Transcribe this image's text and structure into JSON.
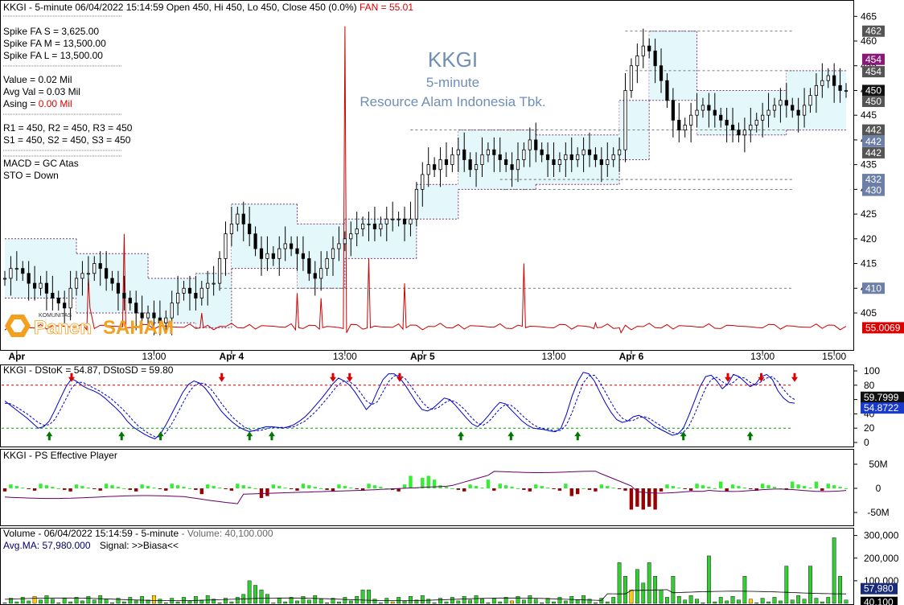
{
  "colors": {
    "band_fill": "#e4f7fa",
    "band_edge": "#7a3a7a",
    "candle": "#000000",
    "fan": "#cc0000",
    "stoch": "#0000cc",
    "stoch_sig": "#0000cc",
    "overbought": "#cc0000",
    "oversold": "#009900",
    "ps_pos": "#33ee33",
    "ps_neg": "#990000",
    "ps_line": "#660066",
    "vol_green": "#33cc33",
    "vol_red": "#cc0000",
    "vol_gray": "#bbbbbb",
    "vol_yellow": "#ffcc00"
  },
  "main": {
    "header": "KKGI - 5-minute 06/04/2022 15:14:59 Open 450, Hi 450, Lo 450, Close 450 (0.0%)",
    "header_fan": "FAN = 55.01",
    "watermark_ticker": "KKGI",
    "watermark_interval": "5-minute",
    "watermark_company": "Resource Alam Indonesia Tbk.",
    "info_lines": [
      "Spike FA S =  3,625.00",
      "Spike FA M =  13,500.00",
      "Spike FA L =  13,500.00",
      "Value = 0.02 Mil",
      "Avg Val = 0.03 Mil",
      "Asing = 0.00 Mil",
      "R1 = 450, R2 = 450, R3 = 450",
      "S1 = 450, S2 = 450, S3 = 450",
      "MACD =  GC Atas",
      "STO  =  Down"
    ],
    "info_asing_label": "Asing = ",
    "info_asing_value": "0.00 Mil",
    "logo_small": "KOMUNITAS",
    "logo_a": "Panen",
    "logo_b": "SAHAM"
  },
  "chart_data": [
    {
      "type": "candlestick",
      "title": "KKGI - 5-minute 06/04/2022 15:14:59 Open 450, Hi 450, Lo 450, Close 450 (0.0%)",
      "ylim": [
        398,
        467
      ],
      "y_ticks": [
        405,
        410,
        415,
        420,
        425,
        430,
        435,
        440,
        445,
        450,
        455,
        460,
        465
      ],
      "x_labels": [
        {
          "label": "Apr",
          "bar": 2
        },
        {
          "label": "13:00",
          "bar": 25
        },
        {
          "label": "Apr 4",
          "bar": 38
        },
        {
          "label": "13:00",
          "bar": 57
        },
        {
          "label": "Apr 5",
          "bar": 70
        },
        {
          "label": "13:00",
          "bar": 92
        },
        {
          "label": "Apr 6",
          "bar": 105
        },
        {
          "label": "13:00",
          "bar": 127
        },
        {
          "label": "15:00",
          "bar": 139
        }
      ],
      "level_lines": [
        410,
        430,
        432,
        442,
        454,
        462
      ],
      "price_tags": [
        {
          "value": "462",
          "y": 462,
          "bg": "#555555"
        },
        {
          "value": "454",
          "y": 456.3,
          "bg": "#8a1a7a"
        },
        {
          "value": "454",
          "y": 453.8,
          "bg": "#555555"
        },
        {
          "value": "450",
          "y": 450,
          "bg": "#111111"
        },
        {
          "value": "450",
          "y": 447.8,
          "bg": "#555555"
        },
        {
          "value": "442",
          "y": 442,
          "bg": "#555555"
        },
        {
          "value": "442",
          "y": 439.7,
          "bg": "#6b7fa8"
        },
        {
          "value": "442",
          "y": 437.4,
          "bg": "#555555"
        },
        {
          "value": "432",
          "y": 432,
          "bg": "#6b7fa8"
        },
        {
          "value": "430",
          "y": 429.8,
          "bg": "#6b7fa8"
        },
        {
          "value": "410",
          "y": 410,
          "bg": "#6b7fa8"
        },
        {
          "value": "55.0069",
          "y": 402,
          "bg": "#dd0000"
        }
      ],
      "band": [
        {
          "from": 0,
          "to": 12,
          "top": 420,
          "bottom": 408
        },
        {
          "from": 12,
          "to": 24,
          "top": 417,
          "bottom": 405
        },
        {
          "from": 24,
          "to": 32,
          "top": 412,
          "bottom": 403
        },
        {
          "from": 32,
          "to": 38,
          "top": 413,
          "bottom": 402
        },
        {
          "from": 38,
          "to": 49,
          "top": 427,
          "bottom": 414
        },
        {
          "from": 49,
          "to": 57,
          "top": 423,
          "bottom": 410
        },
        {
          "from": 57,
          "to": 69,
          "top": 424,
          "bottom": 416
        },
        {
          "from": 69,
          "to": 76,
          "top": 431,
          "bottom": 424
        },
        {
          "from": 76,
          "to": 89,
          "top": 442,
          "bottom": 430
        },
        {
          "from": 89,
          "to": 103,
          "top": 441,
          "bottom": 431
        },
        {
          "from": 103,
          "to": 108,
          "top": 448,
          "bottom": 436
        },
        {
          "from": 108,
          "to": 116,
          "top": 462,
          "bottom": 448
        },
        {
          "from": 116,
          "to": 131,
          "top": 450,
          "bottom": 441
        },
        {
          "from": 131,
          "to": 141,
          "top": 454,
          "bottom": 442
        }
      ],
      "close": [
        412,
        414,
        414,
        413,
        411,
        410,
        411,
        409,
        408,
        407,
        406,
        410,
        412,
        413,
        413,
        415,
        414,
        412,
        411,
        409,
        408,
        407,
        405,
        404,
        405,
        404,
        403,
        404,
        407,
        409,
        410,
        409,
        408,
        410,
        411,
        411,
        416,
        421,
        423,
        425,
        423,
        421,
        418,
        416,
        417,
        416,
        418,
        419,
        418,
        417,
        416,
        413,
        412,
        414,
        416,
        418,
        419,
        420,
        421,
        422,
        423,
        423,
        422,
        423,
        424,
        424,
        424,
        423,
        424,
        430,
        433,
        435,
        434,
        436,
        435,
        437,
        438,
        436,
        434,
        435,
        437,
        438,
        437,
        436,
        435,
        434,
        436,
        438,
        440,
        438,
        437,
        436,
        435,
        436,
        437,
        436,
        437,
        438,
        437,
        436,
        435,
        436,
        437,
        438,
        450,
        455,
        457,
        459,
        458,
        455,
        452,
        448,
        444,
        442,
        443,
        445,
        446,
        447,
        446,
        445,
        444,
        443,
        442,
        441,
        442,
        443,
        444,
        445,
        446,
        447,
        448,
        447,
        446,
        445,
        447,
        449,
        451,
        452,
        453,
        451,
        450,
        450
      ],
      "fan_series": "spike line with peaks near 421, 463, 413, 416 and baseline near 402",
      "fan_last": 55.0069
    },
    {
      "type": "line",
      "title": "KKGI - DStoK = 54.87, DStoSD = 59.80",
      "ylim": [
        0,
        100
      ],
      "y_ticks": [
        0,
        20,
        40,
        60,
        80,
        100
      ],
      "overbought": 80,
      "oversold": 20,
      "series": [
        {
          "name": "DStoK",
          "last": 54.87,
          "values": [
            58,
            52,
            46,
            40,
            34,
            27,
            20,
            22,
            30,
            45,
            62,
            78,
            89,
            85,
            79,
            75,
            72,
            68,
            62,
            55,
            48,
            40,
            30,
            22,
            17,
            12,
            8,
            5,
            12,
            25,
            40,
            55,
            70,
            81,
            86,
            83,
            76,
            66,
            54,
            43,
            35,
            28,
            22,
            18,
            15,
            17,
            20,
            22,
            22,
            21,
            20,
            22,
            25,
            30,
            36,
            44,
            53,
            62,
            72,
            82,
            90,
            86,
            80,
            70,
            58,
            46,
            54,
            72,
            88,
            96,
            96,
            90,
            80,
            68,
            56,
            46,
            44,
            48,
            55,
            62,
            60,
            52,
            43,
            34,
            26,
            22,
            29,
            38,
            48,
            56,
            54,
            46,
            38,
            30,
            24,
            20,
            19,
            18,
            16,
            15,
            20,
            40,
            65,
            85,
            98,
            96,
            86,
            70,
            55,
            42,
            32,
            28,
            30,
            36,
            38,
            34,
            28,
            22,
            18,
            14,
            10,
            12,
            20,
            38,
            58,
            78,
            92,
            94,
            86,
            75,
            82,
            95,
            92,
            85,
            78,
            82,
            92,
            95,
            88,
            72,
            62,
            56,
            55
          ]
        },
        {
          "name": "DStoSD",
          "last": 59.8,
          "values": [
            55,
            54,
            50,
            45,
            40,
            34,
            28,
            24,
            25,
            32,
            46,
            61,
            76,
            84,
            84,
            80,
            76,
            72,
            67,
            62,
            55,
            48,
            40,
            31,
            23,
            17,
            12,
            8,
            8,
            14,
            26,
            40,
            55,
            69,
            79,
            83,
            82,
            75,
            65,
            54,
            44,
            35,
            28,
            22,
            18,
            16,
            17,
            19,
            21,
            21,
            21,
            21,
            22,
            26,
            30,
            37,
            44,
            53,
            62,
            72,
            81,
            86,
            85,
            79,
            69,
            58,
            53,
            57,
            71,
            85,
            93,
            94,
            89,
            79,
            68,
            57,
            49,
            46,
            49,
            55,
            59,
            57,
            51,
            43,
            34,
            27,
            24,
            29,
            38,
            47,
            53,
            52,
            46,
            38,
            31,
            25,
            21,
            19,
            18,
            16,
            17,
            25,
            42,
            63,
            83,
            93,
            94,
            84,
            70,
            56,
            43,
            34,
            30,
            31,
            35,
            36,
            33,
            28,
            23,
            18,
            14,
            12,
            14,
            23,
            39,
            58,
            76,
            88,
            91,
            85,
            80,
            84,
            91,
            90,
            84,
            80,
            85,
            90,
            92,
            85,
            74,
            65,
            60
          ]
        }
      ],
      "last_tags": [
        {
          "value": "59.7999",
          "y": 59.8
        },
        {
          "value": "54.8722",
          "y": 54.87
        }
      ],
      "buy_arrows": [
        9,
        24,
        32,
        51,
        55,
        95,
        105,
        119,
        141,
        155
      ],
      "sell_arrows": [
        14,
        45,
        68,
        72,
        82,
        150,
        157,
        165
      ]
    },
    {
      "type": "bar",
      "title": "KKGI - PS Effective Player",
      "ylim": [
        -75,
        75
      ],
      "y_ticks": [
        {
          "label": "50M",
          "v": 50
        },
        {
          "label": "0",
          "v": 0
        },
        {
          "label": "-50M",
          "v": -50
        }
      ]
    },
    {
      "type": "bar",
      "title": "Volume - 06/04/2022 15:14:59 - 5-minute",
      "subtitle_volume": "- Volume: 40,100.000",
      "avg_line": "Avg.MA: 57,980.000",
      "signal": "Signal: >>Biasa<<",
      "ylim": [
        0,
        320000
      ],
      "y_ticks": [
        {
          "label": "100,000",
          "v": 100000
        },
        {
          "label": "200,000",
          "v": 200000
        },
        {
          "label": "300,000",
          "v": 300000
        }
      ],
      "last_tags": [
        {
          "value": "57,980",
          "y": 57980
        },
        {
          "value": "40,100",
          "y": 40100
        }
      ]
    }
  ],
  "stoch_panel": {
    "title_prefix": "KKGI - DStoK = 54.87,",
    "title_suffix": "DStoSD = 59.80"
  },
  "ps_panel": {
    "title": "KKGI - PS Effective Player"
  },
  "vol_panel": {
    "title_a": "Volume - 06/04/2022 15:14:59 - 5-minute",
    "title_b": "- Volume: 40,100.000",
    "line2_a": "Avg.MA: 57,980.000",
    "line2_b": "Signal: >>Biasa<<"
  }
}
